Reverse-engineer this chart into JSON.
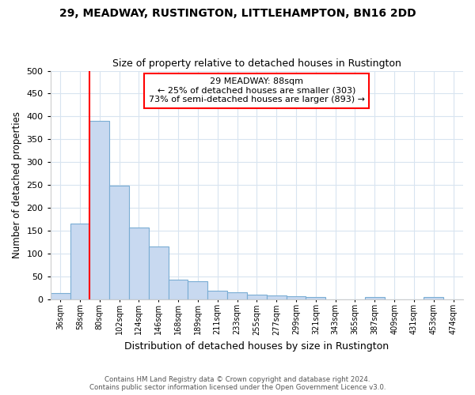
{
  "title1": "29, MEADWAY, RUSTINGTON, LITTLEHAMPTON, BN16 2DD",
  "title2": "Size of property relative to detached houses in Rustington",
  "xlabel": "Distribution of detached houses by size in Rustington",
  "ylabel": "Number of detached properties",
  "bar_color": "#c8d9f0",
  "bar_edge_color": "#7aadd4",
  "vline_color": "red",
  "vline_index": 2,
  "categories": [
    "36sqm",
    "58sqm",
    "80sqm",
    "102sqm",
    "124sqm",
    "146sqm",
    "168sqm",
    "189sqm",
    "211sqm",
    "233sqm",
    "255sqm",
    "277sqm",
    "299sqm",
    "321sqm",
    "343sqm",
    "365sqm",
    "387sqm",
    "409sqm",
    "431sqm",
    "453sqm",
    "474sqm"
  ],
  "values": [
    13,
    165,
    390,
    248,
    157,
    115,
    43,
    39,
    18,
    15,
    10,
    8,
    6,
    4,
    0,
    0,
    5,
    0,
    0,
    5,
    0
  ],
  "ylim": [
    0,
    500
  ],
  "yticks": [
    0,
    50,
    100,
    150,
    200,
    250,
    300,
    350,
    400,
    450,
    500
  ],
  "annotation_text": "29 MEADWAY: 88sqm\n← 25% of detached houses are smaller (303)\n73% of semi-detached houses are larger (893) →",
  "annotation_box_color": "white",
  "annotation_box_edge": "red",
  "footer1": "Contains HM Land Registry data © Crown copyright and database right 2024.",
  "footer2": "Contains public sector information licensed under the Open Government Licence v3.0.",
  "background_color": "#ffffff",
  "grid_color": "#d8e4f0"
}
